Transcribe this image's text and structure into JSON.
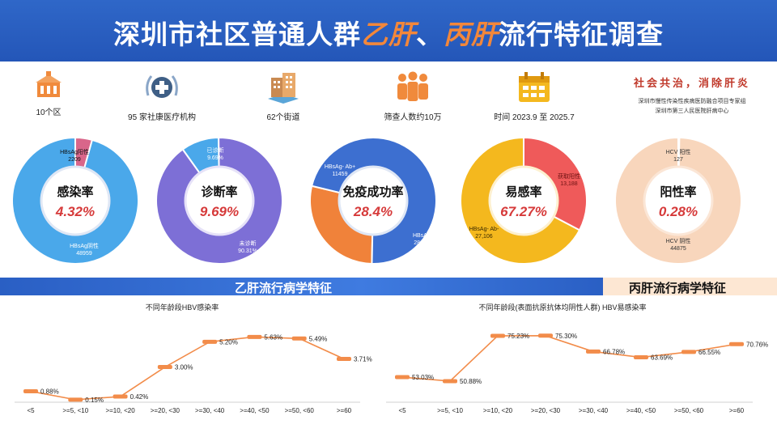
{
  "header": {
    "title_prefix": "深圳市社区普通人群",
    "hl1": "乙肝",
    "sep": "、",
    "hl2": "丙肝",
    "title_suffix": "流行特征调查"
  },
  "stats": [
    {
      "icon": "building-icon",
      "label": "10个区"
    },
    {
      "icon": "medical-cross-icon",
      "label": "95 家社康医疗机构"
    },
    {
      "icon": "street-buildings-icon",
      "label": "62个街道"
    },
    {
      "icon": "people-icon",
      "label": "筛查人数约10万"
    },
    {
      "icon": "calendar-icon",
      "label": "时间 2023.9 至 2025.7"
    }
  ],
  "slogan": {
    "main": "社会共治，消除肝炎",
    "org1": "深圳市慢性传染性疾病医防融合项目专家组",
    "org2": "深圳市第三人民医院肝病中心"
  },
  "colors": {
    "blue": "#3d6fd0",
    "lightblue": "#4aa8ea",
    "pink": "#d9668a",
    "purple": "#7d6fd6",
    "orange": "#f0823a",
    "yellow": "#f4b81e",
    "red": "#ef5a5a",
    "peach": "#f8d6bc",
    "line_orange": "#f28c4a"
  },
  "chart_data": [
    {
      "type": "pie",
      "center_title": "感染率",
      "center_value": "4.32%",
      "slices": [
        {
          "label": "HBsAg阳性",
          "value": 2209
        },
        {
          "label": "HBsAg阴性",
          "value": 48959
        }
      ]
    },
    {
      "type": "pie",
      "center_title": "诊断率",
      "center_value": "9.69%",
      "slices": [
        {
          "label": "已诊断",
          "display": "9.69%",
          "value": 9.69
        },
        {
          "label": "未诊断",
          "display": "90.31%",
          "value": 90.31
        }
      ]
    },
    {
      "type": "pie",
      "center_title": "免疫成功率",
      "center_value": "28.4%",
      "slices": [
        {
          "label": "HBsAg- Ab+",
          "display": "11459",
          "value": 11459
        },
        {
          "label": "HBsAb-",
          "display": "28,835",
          "value": 28835
        }
      ]
    },
    {
      "type": "pie",
      "center_title": "易感率",
      "center_value": "67.27%",
      "slices": [
        {
          "label": "获取阳性",
          "display": "13,188",
          "value": 13188
        },
        {
          "label": "HBsAg- Ab-",
          "display": "27,106",
          "value": 27106
        }
      ]
    },
    {
      "type": "pie",
      "center_title": "阳性率",
      "center_value": "0.28%",
      "slices": [
        {
          "label": "HCV 阳性",
          "display": "127",
          "value": 127
        },
        {
          "label": "HCV 阴性",
          "display": "44875",
          "value": 44875
        }
      ]
    },
    {
      "type": "line",
      "title": "不同年龄段HBV感染率",
      "categories": [
        "<5",
        ">=5, <10",
        ">=10, <20",
        ">=20, <30",
        ">=30, <40",
        ">=40, <50",
        ">=50, <60",
        ">=60"
      ],
      "values": [
        0.88,
        0.15,
        0.42,
        3.0,
        5.2,
        5.63,
        5.49,
        3.71
      ],
      "labels": [
        "0.88%",
        "0.15%",
        "0.42%",
        "3.00%",
        "5.20%",
        "5.63%",
        "5.49%",
        "3.71%"
      ],
      "ylim": [
        0,
        6.5
      ]
    },
    {
      "type": "line",
      "title": "不同年龄段(表面抗原抗体均阴性人群) HBV易感染率",
      "categories": [
        "<5",
        ">=5, <10",
        ">=10, <20",
        ">=20, <30",
        ">=30, <40",
        ">=40, <50",
        ">=50, <60",
        ">=60"
      ],
      "values": [
        53.03,
        50.88,
        75.23,
        75.3,
        66.78,
        63.69,
        66.55,
        70.76
      ],
      "labels": [
        "53.03%",
        "50.88%",
        "75.23%",
        "75.30%",
        "66.78%",
        "63.69%",
        "66.55%",
        "70.76%"
      ],
      "ylim": [
        40,
        80
      ]
    }
  ],
  "sections": {
    "hbv": "乙肝流行病学特征",
    "hcv": "丙肝流行病学特征"
  }
}
